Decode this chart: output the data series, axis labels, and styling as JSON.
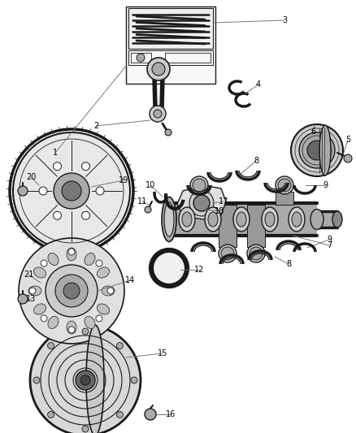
{
  "bg_color": "#ffffff",
  "fig_width": 4.38,
  "fig_height": 5.33,
  "dpi": 100,
  "dark": "#1a1a1a",
  "gray": "#888888",
  "lgray": "#cccccc",
  "mgray": "#aaaaaa"
}
